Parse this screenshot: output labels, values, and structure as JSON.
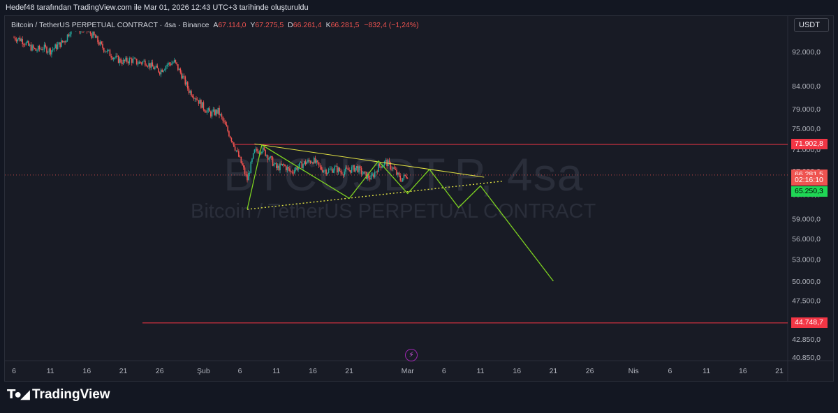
{
  "header": {
    "snapshot_text": "Hedef48 tarafından TradingView.com ile Mar 01, 2026 12:43 UTC+3 tarihinde oluşturuldu"
  },
  "legend": {
    "symbol": "Bitcoin / TetherUS PERPETUAL CONTRACT · 4sa · Binance",
    "o_label": "A",
    "o_value": "67.114,0",
    "h_label": "Y",
    "h_value": "67.275,5",
    "l_label": "D",
    "l_value": "66.261,4",
    "c_label": "K",
    "c_value": "66.281,5",
    "change": "−832,4 (−1,24%)"
  },
  "currency_button": "USDT",
  "watermark": {
    "symbol": "BTCUSDT.P, 4sa",
    "description": "Bitcoin / TetherUS PERPETUAL CONTRACT"
  },
  "colors": {
    "background": "#181b25",
    "up": "#26a69a",
    "down": "#ef5350",
    "level_line": "#f23645",
    "wedge": "#e2e243",
    "projection": "#7ed321",
    "support_tag": "#1fd655"
  },
  "icons": {
    "alert": "lightning-bolt-icon",
    "logo": "tradingview-logo-icon"
  },
  "footer": {
    "brand": "TradingView"
  },
  "price_tags": [
    {
      "label": "71.902,8",
      "price": 71902.8,
      "kind": "level"
    },
    {
      "label": "66.281,5",
      "price": 66281.5,
      "kind": "current"
    },
    {
      "label": "02:16:10",
      "price": 65300,
      "kind": "countdown"
    },
    {
      "label": "65.250,3",
      "price": 63400,
      "kind": "support"
    },
    {
      "label": "44.748,7",
      "price": 44748.7,
      "kind": "level"
    }
  ],
  "chart_data": {
    "type": "line",
    "title": "Bitcoin / TetherUS PERPETUAL CONTRACT · 4sa · Binance",
    "scale": "log",
    "y_ticks": [
      {
        "value": 92000,
        "label": "92.000,0"
      },
      {
        "value": 84000,
        "label": "84.000,0"
      },
      {
        "value": 79000,
        "label": "79.000,0"
      },
      {
        "value": 75000,
        "label": "75.000,0"
      },
      {
        "value": 71000,
        "label": "71.000,0"
      },
      {
        "value": 67000,
        "label": "67.000,0"
      },
      {
        "value": 63000,
        "label": "63.000,0"
      },
      {
        "value": 59000,
        "label": "59.000,0"
      },
      {
        "value": 56000,
        "label": "56.000,0"
      },
      {
        "value": 53000,
        "label": "53.000,0"
      },
      {
        "value": 50000,
        "label": "50.000,0"
      },
      {
        "value": 47500,
        "label": "47.500,0"
      },
      {
        "value": 45100,
        "label": "45.100,0"
      },
      {
        "value": 42850,
        "label": "42.850,0"
      },
      {
        "value": 40850,
        "label": "40.850,0"
      }
    ],
    "x_ticks": [
      {
        "day": 6,
        "label": "6"
      },
      {
        "day": 11,
        "label": "11"
      },
      {
        "day": 16,
        "label": "16"
      },
      {
        "day": 21,
        "label": "21"
      },
      {
        "day": 26,
        "label": "26"
      },
      {
        "day": 32,
        "label": "Şub"
      },
      {
        "day": 37,
        "label": "6"
      },
      {
        "day": 42,
        "label": "11"
      },
      {
        "day": 47,
        "label": "16"
      },
      {
        "day": 52,
        "label": "21"
      },
      {
        "day": 60,
        "label": "Mar"
      },
      {
        "day": 65,
        "label": "6"
      },
      {
        "day": 70,
        "label": "11"
      },
      {
        "day": 75,
        "label": "16"
      },
      {
        "day": 80,
        "label": "21"
      },
      {
        "day": 85,
        "label": "26"
      },
      {
        "day": 91,
        "label": "Nis"
      },
      {
        "day": 96,
        "label": "6"
      },
      {
        "day": 101,
        "label": "11"
      },
      {
        "day": 106,
        "label": "16"
      },
      {
        "day": 111,
        "label": "21"
      }
    ],
    "price_path": [
      [
        6,
        95500
      ],
      [
        7,
        95000
      ],
      [
        8,
        93400
      ],
      [
        9,
        92300
      ],
      [
        10,
        93000
      ],
      [
        11,
        92200
      ],
      [
        12,
        93500
      ],
      [
        13,
        94800
      ],
      [
        14,
        98500
      ],
      [
        15,
        97600
      ],
      [
        16,
        97300
      ],
      [
        17,
        95800
      ],
      [
        18,
        93300
      ],
      [
        19,
        91700
      ],
      [
        20,
        90300
      ],
      [
        21,
        89500
      ],
      [
        22,
        90100
      ],
      [
        23,
        89300
      ],
      [
        24,
        89600
      ],
      [
        25,
        88300
      ],
      [
        26,
        87400
      ],
      [
        27,
        88900
      ],
      [
        28,
        89500
      ],
      [
        29,
        86500
      ],
      [
        30,
        83000
      ],
      [
        31,
        81400
      ],
      [
        32,
        79300
      ],
      [
        33,
        78000
      ],
      [
        34,
        78500
      ],
      [
        35,
        75500
      ],
      [
        36,
        72500
      ],
      [
        37,
        69000
      ],
      [
        38,
        65500
      ],
      [
        39,
        70500
      ],
      [
        40,
        71000
      ],
      [
        41,
        69500
      ],
      [
        42,
        67500
      ],
      [
        43,
        68000
      ],
      [
        44,
        66800
      ],
      [
        45,
        67800
      ],
      [
        46,
        68500
      ],
      [
        47,
        69000
      ],
      [
        48,
        67500
      ],
      [
        49,
        67000
      ],
      [
        50,
        67500
      ],
      [
        51,
        66800
      ],
      [
        52,
        67200
      ],
      [
        53,
        67600
      ],
      [
        54,
        66400
      ],
      [
        55,
        65700
      ],
      [
        56,
        67800
      ],
      [
        57,
        68600
      ],
      [
        58,
        67500
      ],
      [
        59,
        65500
      ],
      [
        60,
        66300
      ]
    ],
    "levels": [
      71902.8,
      44748.7
    ],
    "wedge_upper": [
      [
        39,
        72000
      ],
      [
        70.5,
        65900
      ]
    ],
    "wedge_lower": [
      [
        38,
        60500
      ],
      [
        73,
        65200
      ]
    ],
    "projection": [
      [
        38,
        60500
      ],
      [
        40,
        71800
      ],
      [
        52,
        62300
      ],
      [
        56,
        68800
      ],
      [
        60,
        63100
      ],
      [
        63,
        67300
      ],
      [
        67,
        60800
      ],
      [
        70,
        64400
      ],
      [
        80,
        50000
      ]
    ]
  }
}
